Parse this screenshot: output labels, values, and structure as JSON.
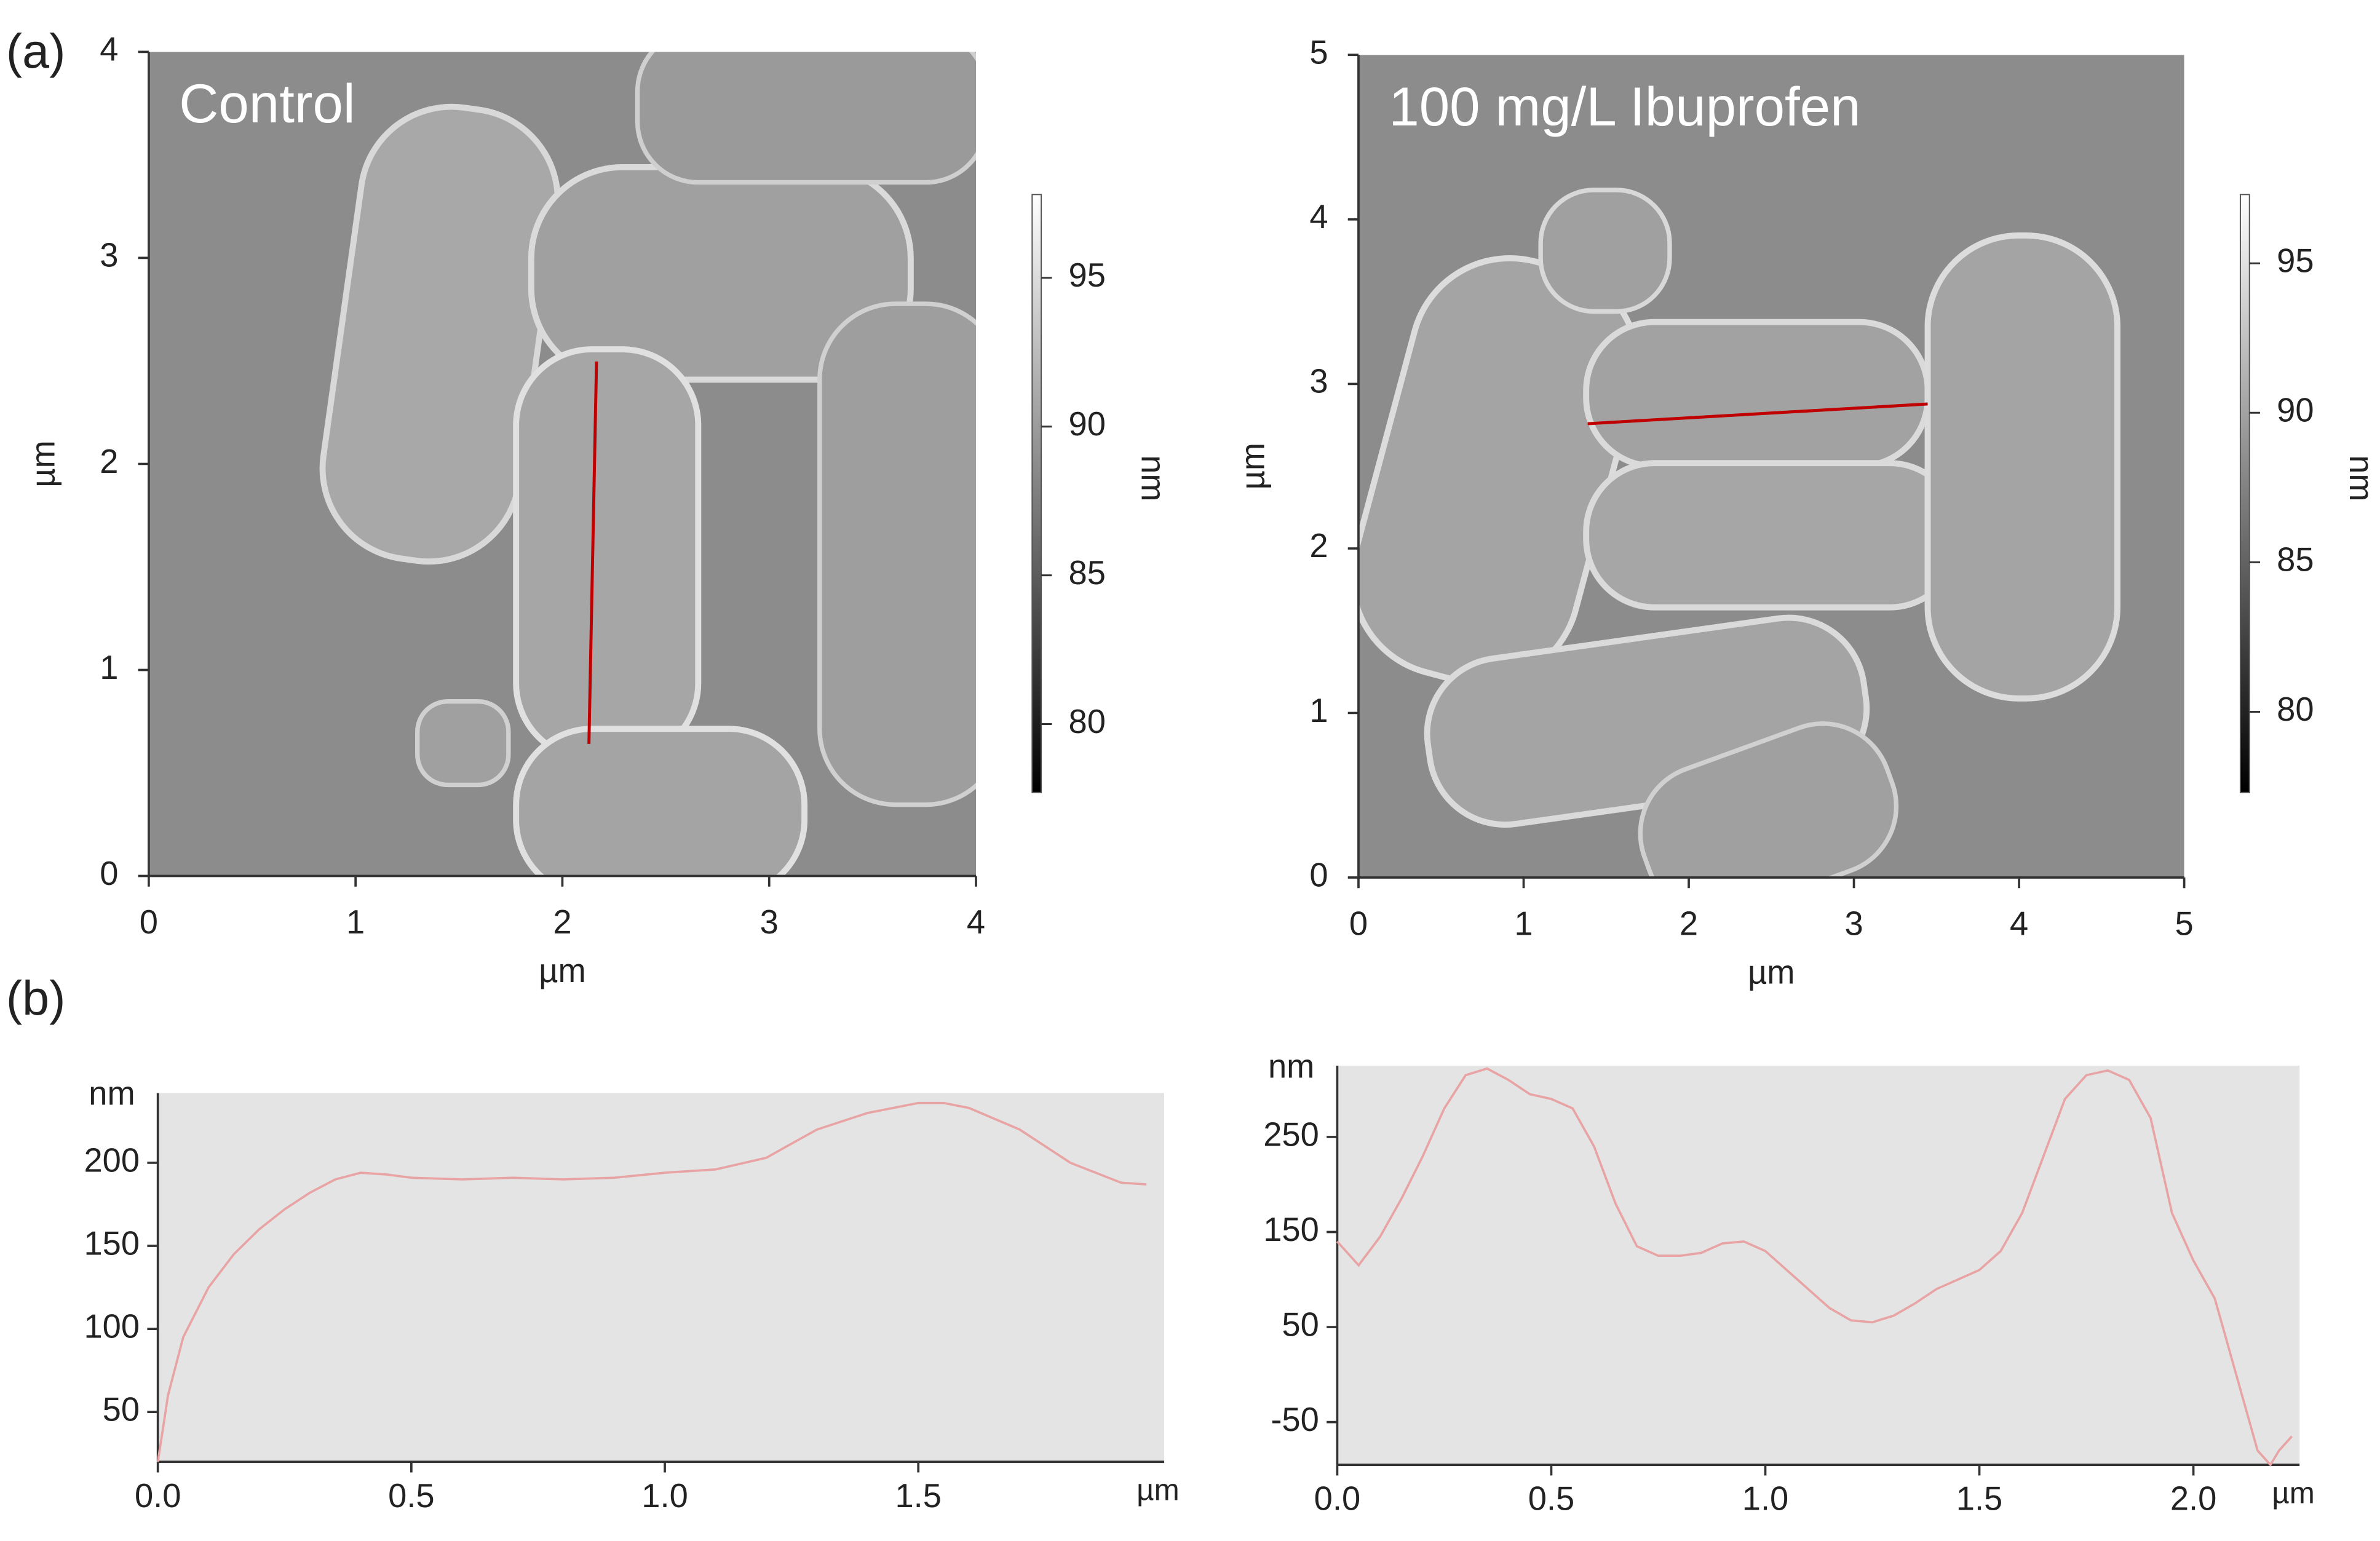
{
  "panel_labels": [
    "(a)",
    "(b)"
  ],
  "chart_data": [
    {
      "type": "image",
      "annotation": "Control",
      "xlabel": "µm",
      "ylabel": "µm",
      "xlim": [
        0,
        4
      ],
      "ylim": [
        0,
        4
      ],
      "xticks": [
        0,
        1,
        2,
        3,
        4
      ],
      "yticks": [
        0,
        1,
        2,
        3,
        4
      ],
      "colorbar": {
        "label": "nm",
        "lim": [
          77.7,
          97.8
        ],
        "ticks": [
          80,
          85,
          90,
          95
        ]
      }
    },
    {
      "type": "image",
      "annotation": "100 mg/L Ibuprofen",
      "xlabel": "µm",
      "ylabel": "µm",
      "xlim": [
        0,
        5
      ],
      "ylim": [
        0,
        5
      ],
      "xticks": [
        0,
        1,
        2,
        3,
        4,
        5
      ],
      "yticks": [
        0,
        1,
        2,
        3,
        4,
        5
      ],
      "colorbar": {
        "label": "nm",
        "lim": [
          77.3,
          97.3
        ],
        "ticks": [
          80,
          85,
          90,
          95
        ]
      }
    },
    {
      "type": "line",
      "xlabel": "µm",
      "ylabel": "nm",
      "xlim": [
        0,
        1.985
      ],
      "ylim": [
        20,
        242
      ],
      "xticks": [
        {
          "value": 0,
          "label": "0.0"
        },
        0.5,
        {
          "value": 1,
          "label": "1.0"
        },
        1.5
      ],
      "yticks": [
        50,
        100,
        150,
        200
      ],
      "series": [
        {
          "color": "#e8a4a4",
          "x": [
            0,
            0.02,
            0.05,
            0.1,
            0.15,
            0.2,
            0.25,
            0.3,
            0.35,
            0.4,
            0.45,
            0.5,
            0.6,
            0.7,
            0.8,
            0.9,
            1.0,
            1.1,
            1.2,
            1.3,
            1.4,
            1.5,
            1.55,
            1.6,
            1.7,
            1.8,
            1.9,
            1.95
          ],
          "values": [
            20,
            60,
            95,
            125,
            145,
            160,
            172,
            182,
            190,
            194,
            193,
            191,
            190,
            191,
            190,
            191,
            194,
            196,
            203,
            220,
            230,
            236,
            236,
            233,
            220,
            200,
            188,
            187
          ]
        }
      ]
    },
    {
      "type": "line",
      "xlabel": "µm",
      "ylabel": "nm",
      "xlim": [
        0,
        2.248
      ],
      "ylim": [
        -95,
        325
      ],
      "xticks": [
        {
          "value": 0,
          "label": "0.0"
        },
        0.5,
        {
          "value": 1,
          "label": "1.0"
        },
        1.5,
        {
          "value": 2,
          "label": "2.0"
        }
      ],
      "yticks": [
        -50,
        50,
        150,
        250
      ],
      "series": [
        {
          "color": "#e8a4a4",
          "x": [
            0,
            0.05,
            0.1,
            0.15,
            0.2,
            0.25,
            0.3,
            0.35,
            0.4,
            0.45,
            0.5,
            0.55,
            0.6,
            0.65,
            0.7,
            0.75,
            0.8,
            0.85,
            0.9,
            0.95,
            1.0,
            1.05,
            1.1,
            1.15,
            1.2,
            1.25,
            1.3,
            1.35,
            1.4,
            1.45,
            1.5,
            1.55,
            1.6,
            1.65,
            1.7,
            1.75,
            1.8,
            1.85,
            1.9,
            1.95,
            2.0,
            2.05,
            2.1,
            2.15,
            2.18,
            2.2,
            2.23
          ],
          "values": [
            140,
            115,
            145,
            185,
            230,
            280,
            315,
            322,
            310,
            295,
            290,
            280,
            240,
            180,
            135,
            125,
            125,
            128,
            138,
            140,
            130,
            110,
            90,
            70,
            57,
            55,
            62,
            75,
            90,
            100,
            110,
            130,
            170,
            230,
            290,
            315,
            320,
            310,
            270,
            170,
            120,
            80,
            0,
            -80,
            -95,
            -80,
            -65
          ]
        }
      ]
    }
  ]
}
